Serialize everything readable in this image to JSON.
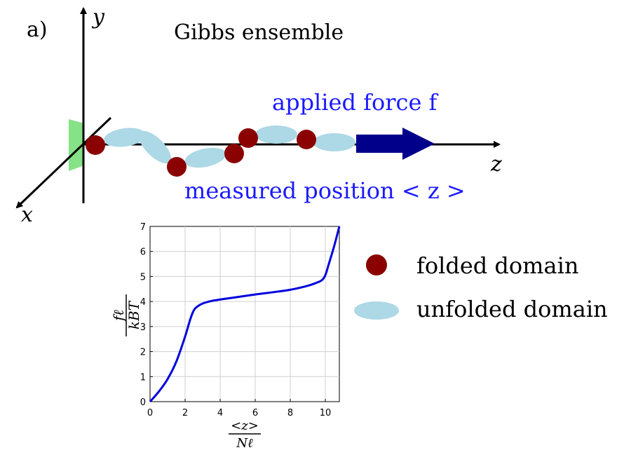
{
  "panel_label": "a)",
  "title": "Gibbs ensemble",
  "axes3d": {
    "x_label": "x",
    "y_label": "y",
    "z_label": "z"
  },
  "force_label": "applied force f",
  "position_label": "measured position < z >",
  "legend": {
    "folded_label": "folded domain",
    "unfolded_label": "unfolded domain",
    "folded_color": "#8b0000",
    "unfolded_color": "#add8e6"
  },
  "colors": {
    "force_text": "#1a1aff",
    "force_arrow": "#00008b",
    "surface": "#7fe07f",
    "curve": "#0000dd"
  },
  "chart_data": {
    "type": "line",
    "xlabel_num": "<z>",
    "xlabel_den": "Nℓ",
    "ylabel_num": "fℓ",
    "ylabel_den": "kBT",
    "xlim": [
      0,
      10.8
    ],
    "ylim": [
      0,
      7
    ],
    "x_ticks": [
      0,
      2,
      4,
      6,
      8,
      10
    ],
    "y_ticks": [
      0,
      1,
      2,
      3,
      4,
      5,
      6,
      7
    ],
    "grid": true,
    "series": [
      {
        "x": [
          0,
          0.5,
          1.0,
          1.5,
          2.0,
          2.3,
          2.5,
          2.7,
          3.0,
          3.5,
          4.0,
          5.0,
          6.0,
          7.0,
          8.0,
          9.0,
          9.5,
          9.8,
          10.0,
          10.2,
          10.5,
          10.8
        ],
        "y": [
          0,
          0.4,
          0.9,
          1.6,
          2.6,
          3.3,
          3.65,
          3.8,
          3.92,
          4.02,
          4.08,
          4.18,
          4.28,
          4.37,
          4.47,
          4.63,
          4.75,
          4.85,
          5.05,
          5.5,
          6.2,
          7.0
        ]
      }
    ]
  }
}
